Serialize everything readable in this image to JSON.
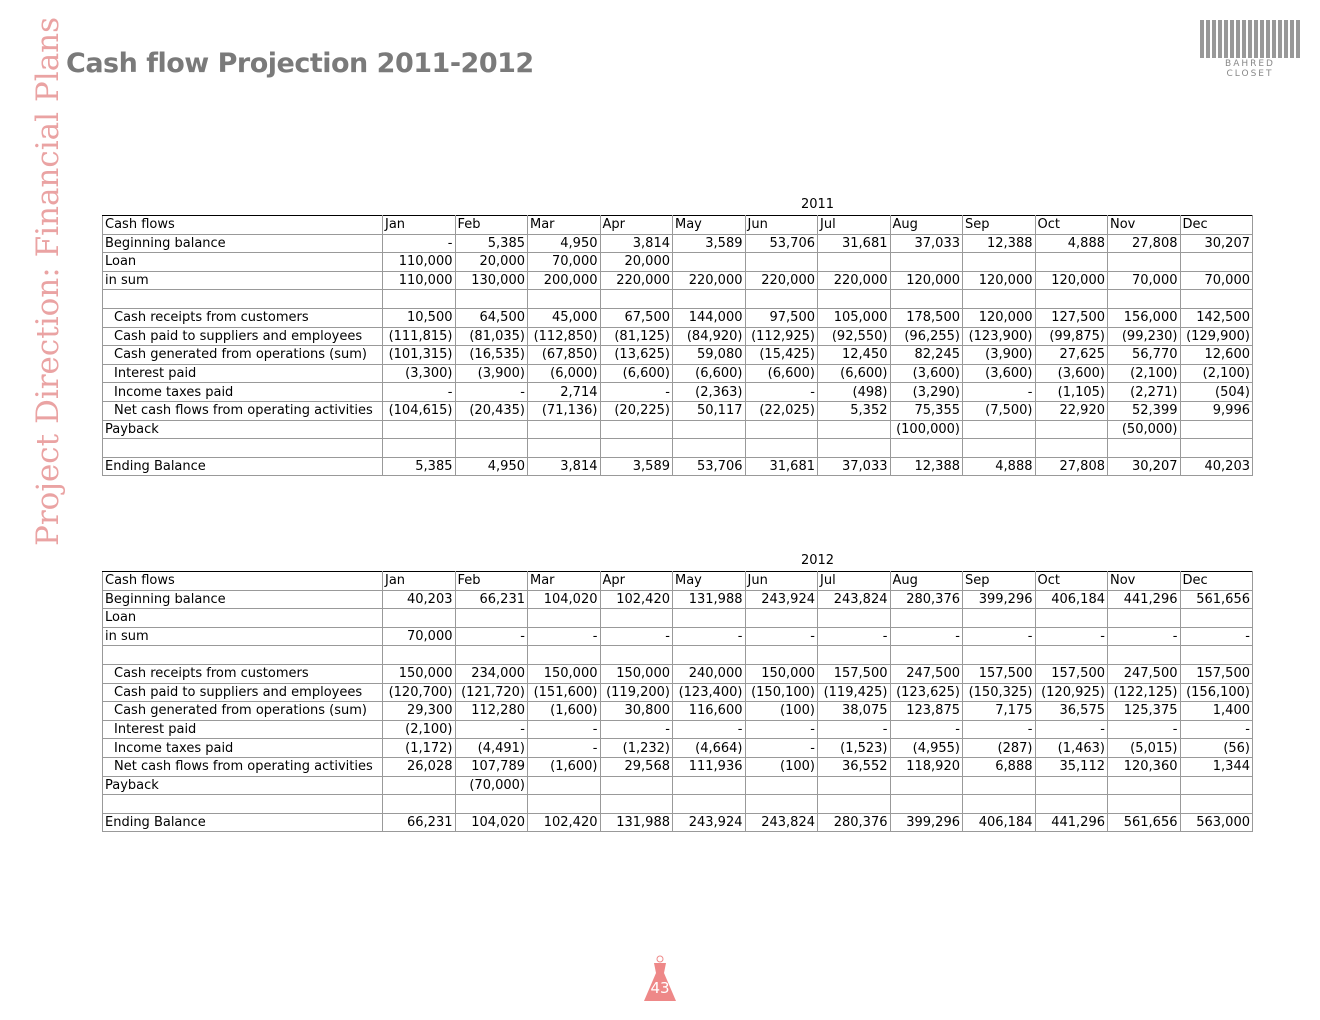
{
  "header": {
    "title": "Cash flow Projection 2011-2012",
    "side_title": "Project Direction: Financial Plans",
    "logo": "BAHRED CLOSET"
  },
  "tables": [
    {
      "year": "2011",
      "columns": [
        "Cash flows",
        "Jan",
        "Feb",
        "Mar",
        "Apr",
        "May",
        "Jun",
        "Jul",
        "Aug",
        "Sep",
        "Oct",
        "Nov",
        "Dec"
      ],
      "rows": [
        [
          "Beginning balance",
          "-",
          "5,385",
          "4,950",
          "3,814",
          "3,589",
          "53,706",
          "31,681",
          "37,033",
          "12,388",
          "4,888",
          "27,808",
          "30,207"
        ],
        [
          "Loan",
          "110,000",
          "20,000",
          "70,000",
          "20,000",
          null,
          null,
          null,
          null,
          null,
          null,
          null,
          null
        ],
        [
          "in sum",
          "110,000",
          "130,000",
          "200,000",
          "220,000",
          "220,000",
          "220,000",
          "220,000",
          "120,000",
          "120,000",
          "120,000",
          "70,000",
          "70,000"
        ],
        [
          null,
          null,
          null,
          null,
          null,
          null,
          null,
          null,
          null,
          null,
          null,
          null,
          null
        ],
        [
          "Cash receipts from customers",
          "10,500",
          "64,500",
          "45,000",
          "67,500",
          "144,000",
          "97,500",
          "105,000",
          "178,500",
          "120,000",
          "127,500",
          "156,000",
          "142,500"
        ],
        [
          "Cash paid to suppliers and employees",
          "(111,815)",
          "(81,035)",
          "(112,850)",
          "(81,125)",
          "(84,920)",
          "(112,925)",
          "(92,550)",
          "(96,255)",
          "(123,900)",
          "(99,875)",
          "(99,230)",
          "(129,900)"
        ],
        [
          "Cash generated from operations (sum)",
          "(101,315)",
          "(16,535)",
          "(67,850)",
          "(13,625)",
          "59,080",
          "(15,425)",
          "12,450",
          "82,245",
          "(3,900)",
          "27,625",
          "56,770",
          "12,600"
        ],
        [
          "Interest paid",
          "(3,300)",
          "(3,900)",
          "(6,000)",
          "(6,600)",
          "(6,600)",
          "(6,600)",
          "(6,600)",
          "(3,600)",
          "(3,600)",
          "(3,600)",
          "(2,100)",
          "(2,100)"
        ],
        [
          "Income taxes paid",
          "-",
          "-",
          "2,714",
          "-",
          "(2,363)",
          "-",
          "(498)",
          "(3,290)",
          "-",
          "(1,105)",
          "(2,271)",
          "(504)"
        ],
        [
          "Net cash flows from operating activities",
          "(104,615)",
          "(20,435)",
          "(71,136)",
          "(20,225)",
          "50,117",
          "(22,025)",
          "5,352",
          "75,355",
          "(7,500)",
          "22,920",
          "52,399",
          "9,996"
        ],
        [
          "Payback",
          null,
          null,
          null,
          null,
          null,
          null,
          null,
          "(100,000)",
          null,
          null,
          "(50,000)",
          null
        ],
        [
          null,
          null,
          null,
          null,
          null,
          null,
          null,
          null,
          null,
          null,
          null,
          null,
          null
        ],
        [
          "Ending Balance",
          "5,385",
          "4,950",
          "3,814",
          "3,589",
          "53,706",
          "31,681",
          "37,033",
          "12,388",
          "4,888",
          "27,808",
          "30,207",
          "40,203"
        ]
      ]
    },
    {
      "year": "2012",
      "columns": [
        "Cash flows",
        "Jan",
        "Feb",
        "Mar",
        "Apr",
        "May",
        "Jun",
        "Jul",
        "Aug",
        "Sep",
        "Oct",
        "Nov",
        "Dec"
      ],
      "rows": [
        [
          "Beginning balance",
          "40,203",
          "66,231",
          "104,020",
          "102,420",
          "131,988",
          "243,924",
          "243,824",
          "280,376",
          "399,296",
          "406,184",
          "441,296",
          "561,656"
        ],
        [
          "Loan",
          null,
          null,
          null,
          null,
          null,
          null,
          null,
          null,
          null,
          null,
          null,
          null
        ],
        [
          "in sum",
          "70,000",
          "-",
          "-",
          "-",
          "-",
          "-",
          "-",
          "-",
          "-",
          "-",
          "-",
          "-"
        ],
        [
          null,
          null,
          null,
          null,
          null,
          null,
          null,
          null,
          null,
          null,
          null,
          null,
          null
        ],
        [
          "Cash receipts from customers",
          "150,000",
          "234,000",
          "150,000",
          "150,000",
          "240,000",
          "150,000",
          "157,500",
          "247,500",
          "157,500",
          "157,500",
          "247,500",
          "157,500"
        ],
        [
          "Cash paid to suppliers and employees",
          "(120,700)",
          "(121,720)",
          "(151,600)",
          "(119,200)",
          "(123,400)",
          "(150,100)",
          "(119,425)",
          "(123,625)",
          "(150,325)",
          "(120,925)",
          "(122,125)",
          "(156,100)"
        ],
        [
          "Cash generated from operations (sum)",
          "29,300",
          "112,280",
          "(1,600)",
          "30,800",
          "116,600",
          "(100)",
          "38,075",
          "123,875",
          "7,175",
          "36,575",
          "125,375",
          "1,400"
        ],
        [
          "Interest paid",
          "(2,100)",
          "-",
          "-",
          "-",
          "-",
          "-",
          "-",
          "-",
          "-",
          "-",
          "-",
          "-"
        ],
        [
          "Income taxes paid",
          "(1,172)",
          "(4,491)",
          "-",
          "(1,232)",
          "(4,664)",
          "-",
          "(1,523)",
          "(4,955)",
          "(287)",
          "(1,463)",
          "(5,015)",
          "(56)"
        ],
        [
          "Net cash flows from operating activities",
          "26,028",
          "107,789",
          "(1,600)",
          "29,568",
          "111,936",
          "(100)",
          "36,552",
          "118,920",
          "6,888",
          "35,112",
          "120,360",
          "1,344"
        ],
        [
          "Payback",
          null,
          "(70,000)",
          null,
          null,
          null,
          null,
          null,
          null,
          null,
          null,
          null,
          null
        ],
        [
          null,
          null,
          null,
          null,
          null,
          null,
          null,
          null,
          null,
          null,
          null,
          null,
          null
        ],
        [
          "Ending Balance",
          "66,231",
          "104,020",
          "102,420",
          "131,988",
          "243,924",
          "243,824",
          "280,376",
          "399,296",
          "406,184",
          "441,296",
          "561,656",
          "563,000"
        ]
      ]
    }
  ],
  "footer": {
    "page_number": "43"
  }
}
